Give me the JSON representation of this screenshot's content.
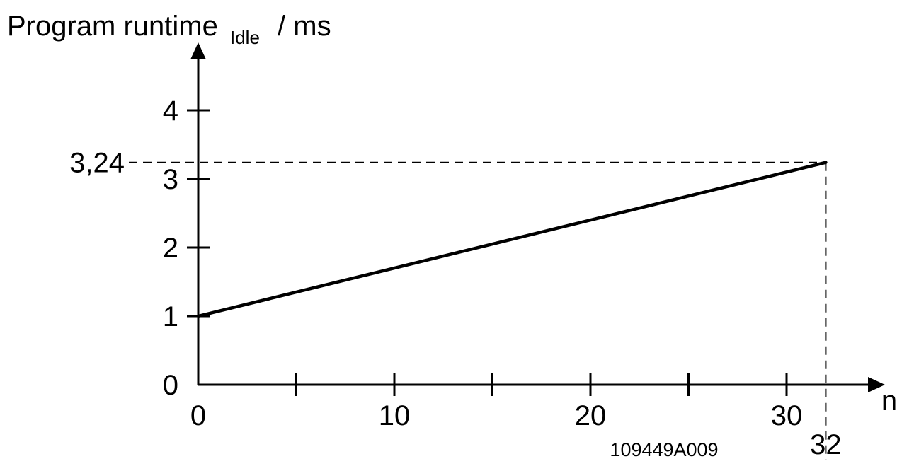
{
  "chart_data": {
    "type": "line",
    "title": {
      "main": "Program runtime",
      "subscript": "Idle",
      "unit": "/ ms"
    },
    "xlabel": "n",
    "ylabel": "Program runtime Idle / ms",
    "xlim": [
      0,
      35
    ],
    "ylim": [
      0,
      4.8
    ],
    "x_ticks": [
      0,
      5,
      10,
      15,
      20,
      25,
      30
    ],
    "x_tick_labels": [
      {
        "value": 0,
        "label": "0"
      },
      {
        "value": 10,
        "label": "10"
      },
      {
        "value": 20,
        "label": "20"
      },
      {
        "value": 30,
        "label": "30"
      }
    ],
    "y_ticks": [
      0,
      1,
      2,
      3,
      4
    ],
    "y_tick_labels": [
      {
        "value": 0,
        "label": "0"
      },
      {
        "value": 1,
        "label": "1"
      },
      {
        "value": 2,
        "label": "2"
      },
      {
        "value": 3,
        "label": "3"
      },
      {
        "value": 4,
        "label": "4"
      }
    ],
    "series": [
      {
        "x": [
          0,
          32
        ],
        "y": [
          1,
          3.24
        ]
      }
    ],
    "annotations": [
      {
        "type": "reference-point",
        "x": 32,
        "y": 3.24,
        "x_label": "32",
        "y_label": "3,24",
        "style": "dashed"
      }
    ],
    "grid": false,
    "legend": "none",
    "figure_id": "109449A009",
    "colors": {
      "line": "#000000",
      "axis": "#000000",
      "background": "#ffffff"
    }
  }
}
